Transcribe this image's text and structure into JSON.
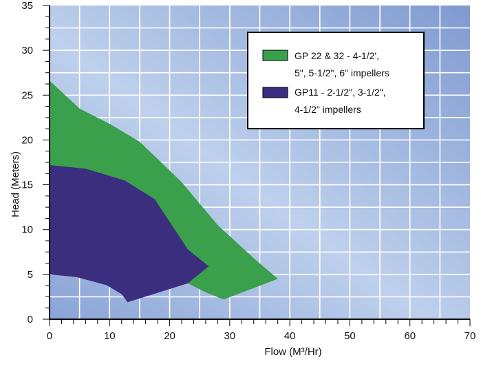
{
  "chart_data": {
    "type": "area",
    "xlabel": "Flow (M³/Hr)",
    "ylabel": "Head (Meters)",
    "xlim": [
      0,
      70
    ],
    "ylim": [
      0,
      35
    ],
    "x_ticks": [
      0,
      10,
      20,
      30,
      40,
      50,
      60,
      70
    ],
    "y_ticks": [
      0,
      5,
      10,
      15,
      20,
      25,
      30,
      35
    ],
    "x_tick_labels": [
      "0",
      "10",
      "20",
      "30",
      "40",
      "50",
      "60",
      "70"
    ],
    "y_tick_labels": [
      "0",
      "5",
      "10",
      "15",
      "20",
      "25",
      "30",
      "35"
    ],
    "grid": true,
    "legend_position": "top-right",
    "series": [
      {
        "name_lines": [
          "GP 22 & 32 - 4-1/2',",
          "5\", 5-1/2\", 6\"  impellers"
        ],
        "color": "#3aa04b",
        "points": [
          [
            0,
            26.6
          ],
          [
            5,
            23.5
          ],
          [
            10,
            21.8
          ],
          [
            15,
            19.8
          ],
          [
            22,
            15.3
          ],
          [
            28,
            10.5
          ],
          [
            34,
            6.8
          ],
          [
            38,
            4.5
          ],
          [
            29,
            2.2
          ],
          [
            26,
            3.0
          ],
          [
            23,
            4.0
          ],
          [
            17.5,
            13.4
          ],
          [
            12.5,
            15.5
          ],
          [
            6,
            16.8
          ],
          [
            0,
            17.2
          ]
        ]
      },
      {
        "name_lines": [
          "GP11 - 2-1/2\", 3-1/2\",",
          "4-1/2\" impellers"
        ],
        "color": "#3b2e7e",
        "points": [
          [
            0,
            17.2
          ],
          [
            6,
            16.8
          ],
          [
            12.5,
            15.5
          ],
          [
            17.5,
            13.4
          ],
          [
            23,
            7.8
          ],
          [
            26.5,
            5.9
          ],
          [
            23,
            4.0
          ],
          [
            13,
            1.9
          ],
          [
            12,
            2.8
          ],
          [
            9.5,
            3.8
          ],
          [
            4.5,
            4.7
          ],
          [
            0,
            5.0
          ]
        ]
      }
    ]
  }
}
